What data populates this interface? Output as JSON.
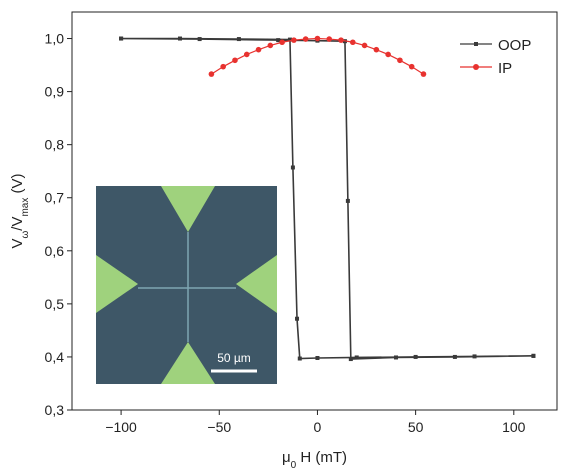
{
  "chart_data": {
    "type": "line",
    "xlabel": [
      "μ",
      "0",
      " H (mT)"
    ],
    "ylabel": [
      "V",
      "ω",
      "/V",
      "max",
      " (V)"
    ],
    "xlim": [
      -125,
      122
    ],
    "ylim": [
      0.3,
      1.05
    ],
    "xticks": [
      {
        "value": -100,
        "label": "−100"
      },
      {
        "value": -50,
        "label": "−50"
      },
      0,
      50,
      100
    ],
    "yticks": [
      {
        "value": 0.3,
        "label": "0,3"
      },
      {
        "value": 0.4,
        "label": "0,4"
      },
      {
        "value": 0.5,
        "label": "0,5"
      },
      {
        "value": 0.6,
        "label": "0,6"
      },
      {
        "value": 0.7,
        "label": "0,7"
      },
      {
        "value": 0.8,
        "label": "0,8"
      },
      {
        "value": 0.9,
        "label": "0,9"
      },
      {
        "value": 1.0,
        "label": "1,0"
      }
    ],
    "legend": "upper right",
    "annotations": [
      "50 µm"
    ],
    "series": [
      {
        "name": "OOP",
        "color": "#3a3a3a",
        "marker": "square",
        "x": [
          110,
          80,
          50,
          20,
          0,
          -9,
          -10.4,
          -12.5,
          -14,
          -40,
          -70,
          -100,
          -100,
          -60,
          -20,
          0,
          14,
          15.5,
          17,
          40,
          70,
          110
        ],
        "values": [
          0.402,
          0.401,
          0.4,
          0.399,
          0.398,
          0.397,
          0.472,
          0.757,
          0.998,
          0.999,
          1.0,
          1.0,
          1.0,
          0.999,
          0.997,
          0.996,
          0.995,
          0.694,
          0.396,
          0.399,
          0.4,
          0.402
        ]
      },
      {
        "name": "IP",
        "color": "#e8322f",
        "marker": "circle",
        "x": [
          -54,
          -48,
          -42,
          -36,
          -30,
          -24,
          -18,
          -12,
          -6,
          0,
          6,
          12,
          18,
          24,
          30,
          36,
          42,
          48,
          54
        ],
        "values": [
          0.933,
          0.947,
          0.959,
          0.97,
          0.979,
          0.987,
          0.993,
          0.997,
          0.999,
          1.0,
          0.999,
          0.997,
          0.993,
          0.987,
          0.979,
          0.97,
          0.959,
          0.947,
          0.933
        ]
      }
    ]
  }
}
